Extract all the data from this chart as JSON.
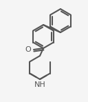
{
  "bg_color": "#f5f5f5",
  "line_color": "#555555",
  "line_width": 1.5,
  "text_color": "#555555",
  "font_size": 7,
  "figsize": [
    1.28,
    1.48
  ],
  "dpi": 100
}
